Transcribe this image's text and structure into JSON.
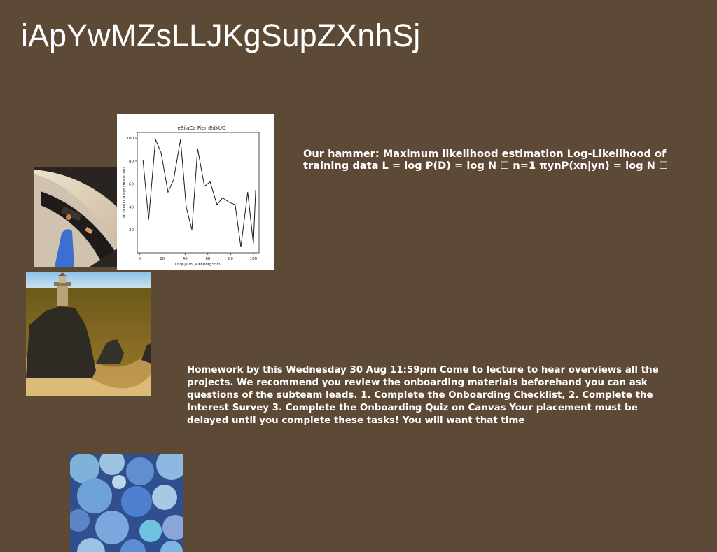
{
  "slide": {
    "title": "iApYwMZsLLJKgSupZXnhSj",
    "paragraph1": "Our hammer: Maximum likelihood estimation Log-Likelihood of training data L = log P(D) = log N ☐ n=1 πynP(xn|yn) = log N ☐",
    "paragraph2": "Homework by this Wednesday 30 Aug 11:59pm Come to lecture to hear overviews all the projects. We recommend you review the onboarding materials beforehand you can ask questions of the subteam leads. 1. Complete the Onboarding Checklist, 2. Complete the Interest Survey 3. Complete the Onboarding Quiz on Canvas Your placement must be delayed until you complete these tasks! You will want that time"
  },
  "images": {
    "photo1": "monitor-photo",
    "photo2": "lighthouse-photo",
    "photo3": "blue-discs-photo"
  },
  "chart_data": {
    "type": "line",
    "title": "eSiiaCa PiemEdkUQ",
    "xlabel": "LnqKjsubQeXKbdtgSSEv",
    "ylabel": "HLPtTFiLCNWyFTtKYZQMu",
    "x": [
      3,
      8,
      14,
      19,
      25,
      30,
      36,
      41,
      46,
      51,
      57,
      62,
      68,
      73,
      79,
      84,
      89,
      95,
      100
    ],
    "values": [
      81,
      29,
      99,
      87,
      53,
      64,
      99,
      40,
      20,
      91,
      58,
      62,
      42,
      48,
      44,
      42,
      5,
      53,
      8
    ],
    "values_tail": [
      55
    ],
    "xlim": [
      -2,
      105
    ],
    "ylim": [
      0,
      105
    ],
    "xticks": [
      "0",
      "20",
      "40",
      "60",
      "80",
      "100"
    ],
    "yticks": [
      "20",
      "40",
      "60",
      "80",
      "100"
    ],
    "color": "#1a1a1a",
    "grid": false
  }
}
